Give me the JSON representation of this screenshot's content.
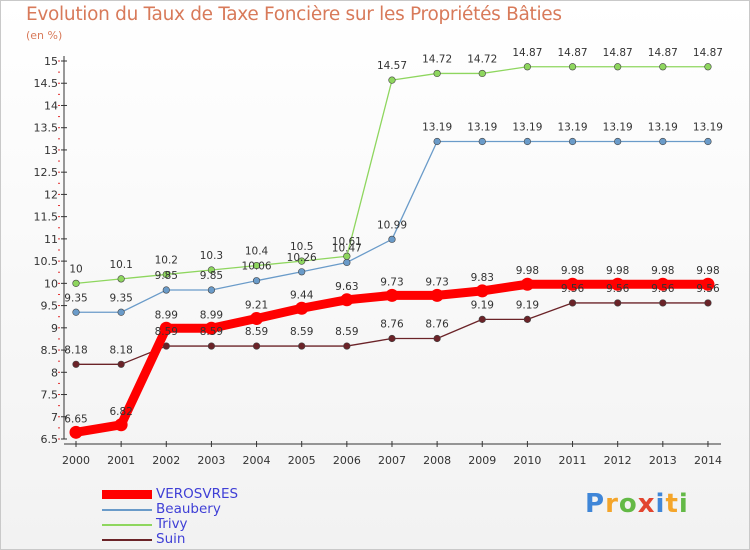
{
  "header": {
    "title": "Evolution du Taux de Taxe Foncière sur les Propriétés Bâties",
    "unit": "(en %)"
  },
  "chart_data": {
    "type": "line",
    "title": "Evolution du Taux de Taxe Foncière sur les Propriétés Bâties",
    "ylabel": "(en %)",
    "xlabel": "",
    "ylim": [
      6.5,
      15
    ],
    "yticks": [
      6.5,
      7,
      7.5,
      8,
      8.5,
      9,
      9.5,
      10,
      10.5,
      11,
      11.5,
      12,
      12.5,
      13,
      13.5,
      14,
      14.5,
      15
    ],
    "grid": false,
    "legend_position": "bottom-left",
    "categories": [
      "2000",
      "2001",
      "2002",
      "2003",
      "2004",
      "2005",
      "2006",
      "2007",
      "2008",
      "2009",
      "2010",
      "2011",
      "2012",
      "2013",
      "2014"
    ],
    "series": [
      {
        "name": "VEROSVRES",
        "color": "#ff0000",
        "values": [
          6.65,
          6.82,
          8.99,
          8.99,
          9.21,
          9.44,
          9.63,
          9.73,
          9.73,
          9.83,
          9.98,
          9.98,
          9.98,
          9.98,
          9.98
        ]
      },
      {
        "name": "Beaubery",
        "color": "#6a9bc9",
        "values": [
          9.35,
          9.35,
          9.85,
          9.85,
          10.06,
          10.26,
          10.47,
          10.99,
          13.19,
          13.19,
          13.19,
          13.19,
          13.19,
          13.19,
          13.19
        ]
      },
      {
        "name": "Trivy",
        "color": "#8ed65e",
        "values": [
          10,
          10.1,
          10.2,
          10.3,
          10.4,
          10.5,
          10.61,
          14.57,
          14.72,
          14.72,
          14.87,
          14.87,
          14.87,
          14.87,
          14.87
        ]
      },
      {
        "name": "Suin",
        "color": "#6b2328",
        "values": [
          8.18,
          8.18,
          8.59,
          8.59,
          8.59,
          8.59,
          8.59,
          8.76,
          8.76,
          9.19,
          9.19,
          9.56,
          9.56,
          9.56,
          9.56
        ]
      }
    ],
    "data_labels": {
      "VEROSVRES": [
        "6.65",
        "6.82",
        "8.99",
        "8.99",
        "9.21",
        "9.44",
        "9.63",
        "9.73",
        "9.73",
        "9.83",
        "9.98",
        "9.98",
        "9.98",
        "9.98",
        "9.98"
      ],
      "Beaubery": [
        "9.35",
        "9.35",
        "9.85",
        "9.85",
        "10.06",
        "10.26",
        "10.47",
        "10.99",
        "13.19",
        "13.19",
        "13.19",
        "13.19",
        "13.19",
        "13.19",
        "13.19"
      ],
      "Trivy": [
        "10",
        "10.1",
        "10.2",
        "10.3",
        "10.4",
        "10.5",
        "10.61",
        "14.57",
        "14.72",
        "14.72",
        "14.87",
        "14.87",
        "14.87",
        "14.87",
        "14.87"
      ],
      "Suin": [
        "8.18",
        "8.18",
        "8.59",
        "8.59",
        "8.59",
        "8.59",
        "8.59",
        "8.76",
        "8.76",
        "9.19",
        "9.19",
        "9.56",
        "9.56",
        "9.56",
        "9.56"
      ]
    }
  },
  "legend": {
    "items": [
      {
        "label": "VEROSVRES",
        "color": "#ff0000"
      },
      {
        "label": "Beaubery",
        "color": "#6a9bc9"
      },
      {
        "label": "Trivy",
        "color": "#8ed65e"
      },
      {
        "label": "Suin",
        "color": "#6b2328"
      }
    ]
  },
  "logo": {
    "text": "Proxiti",
    "letters": [
      "P",
      "r",
      "o",
      "x",
      "i",
      "t",
      "i"
    ],
    "colors": [
      "#3f86d8",
      "#f4a52a",
      "#63b946",
      "#e2452f",
      "#3f86d8",
      "#f4a52a",
      "#63b946"
    ]
  }
}
